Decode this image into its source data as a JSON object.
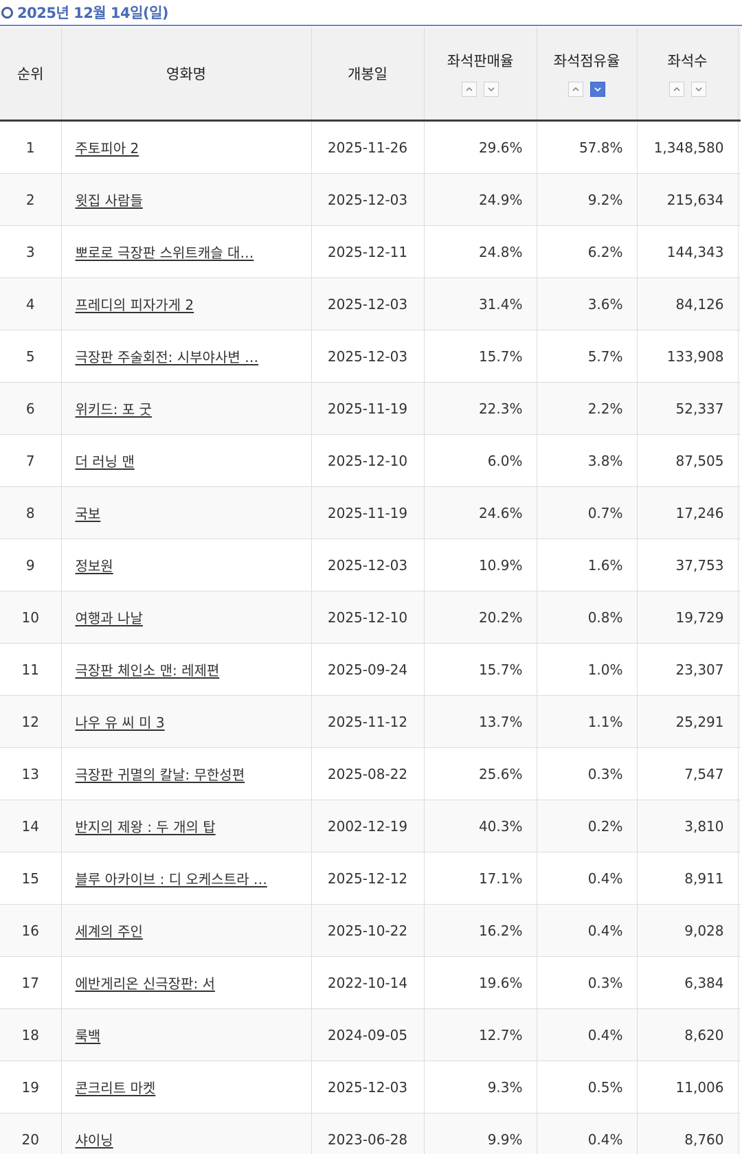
{
  "header": {
    "date": "2025년 12월 14일(일)"
  },
  "table": {
    "columns": {
      "rank": "순위",
      "title": "영화명",
      "release": "개봉일",
      "sales": "좌석판매율",
      "share": "좌석점유율",
      "seats": "좌석수"
    },
    "sort": {
      "active": "share-desc",
      "accent_color": "#4f79d9"
    },
    "rows": [
      {
        "rank": "1",
        "title": "주토피아 2",
        "release": "2025-11-26",
        "sales": "29.6%",
        "share": "57.8%",
        "seats": "1,348,580"
      },
      {
        "rank": "2",
        "title": "윗집 사람들",
        "release": "2025-12-03",
        "sales": "24.9%",
        "share": "9.2%",
        "seats": "215,634"
      },
      {
        "rank": "3",
        "title": "뽀로로 극장판 스위트캐슬 대…",
        "release": "2025-12-11",
        "sales": "24.8%",
        "share": "6.2%",
        "seats": "144,343"
      },
      {
        "rank": "4",
        "title": "프레디의 피자가게 2",
        "release": "2025-12-03",
        "sales": "31.4%",
        "share": "3.6%",
        "seats": "84,126"
      },
      {
        "rank": "5",
        "title": "극장판 주술회전: 시부야사변 …",
        "release": "2025-12-03",
        "sales": "15.7%",
        "share": "5.7%",
        "seats": "133,908"
      },
      {
        "rank": "6",
        "title": "위키드: 포 굿",
        "release": "2025-11-19",
        "sales": "22.3%",
        "share": "2.2%",
        "seats": "52,337"
      },
      {
        "rank": "7",
        "title": "더 러닝 맨",
        "release": "2025-12-10",
        "sales": "6.0%",
        "share": "3.8%",
        "seats": "87,505"
      },
      {
        "rank": "8",
        "title": "국보",
        "release": "2025-11-19",
        "sales": "24.6%",
        "share": "0.7%",
        "seats": "17,246"
      },
      {
        "rank": "9",
        "title": "정보원",
        "release": "2025-12-03",
        "sales": "10.9%",
        "share": "1.6%",
        "seats": "37,753"
      },
      {
        "rank": "10",
        "title": "여행과 나날",
        "release": "2025-12-10",
        "sales": "20.2%",
        "share": "0.8%",
        "seats": "19,729"
      },
      {
        "rank": "11",
        "title": "극장판 체인소 맨: 레제편",
        "release": "2025-09-24",
        "sales": "15.7%",
        "share": "1.0%",
        "seats": "23,307"
      },
      {
        "rank": "12",
        "title": "나우 유 씨 미 3",
        "release": "2025-11-12",
        "sales": "13.7%",
        "share": "1.1%",
        "seats": "25,291"
      },
      {
        "rank": "13",
        "title": "극장판 귀멸의 칼날: 무한성편",
        "release": "2025-08-22",
        "sales": "25.6%",
        "share": "0.3%",
        "seats": "7,547"
      },
      {
        "rank": "14",
        "title": "반지의 제왕 : 두 개의 탑",
        "release": "2002-12-19",
        "sales": "40.3%",
        "share": "0.2%",
        "seats": "3,810"
      },
      {
        "rank": "15",
        "title": "블루 아카이브 : 디 오케스트라 …",
        "release": "2025-12-12",
        "sales": "17.1%",
        "share": "0.4%",
        "seats": "8,911"
      },
      {
        "rank": "16",
        "title": "세계의 주인",
        "release": "2025-10-22",
        "sales": "16.2%",
        "share": "0.4%",
        "seats": "9,028"
      },
      {
        "rank": "17",
        "title": "에반게리온 신극장판: 서",
        "release": "2022-10-14",
        "sales": "19.6%",
        "share": "0.3%",
        "seats": "6,384"
      },
      {
        "rank": "18",
        "title": "룩백",
        "release": "2024-09-05",
        "sales": "12.7%",
        "share": "0.4%",
        "seats": "8,620"
      },
      {
        "rank": "19",
        "title": "콘크리트 마켓",
        "release": "2025-12-03",
        "sales": "9.3%",
        "share": "0.5%",
        "seats": "11,006"
      },
      {
        "rank": "20",
        "title": "샤이닝",
        "release": "2023-06-28",
        "sales": "9.9%",
        "share": "0.4%",
        "seats": "8,760"
      }
    ]
  }
}
